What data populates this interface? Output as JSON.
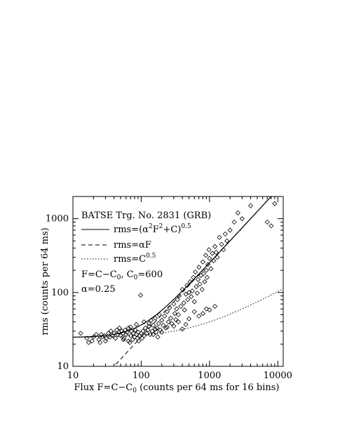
{
  "chart_data": {
    "type": "scatter",
    "xscale": "log",
    "yscale": "log",
    "xlim": [
      10,
      12000
    ],
    "ylim": [
      10,
      2000
    ],
    "x_ticks": [
      10,
      100,
      1000,
      10000
    ],
    "x_tick_labels": [
      "10",
      "100",
      "1000",
      "10000"
    ],
    "y_ticks": [
      10,
      100,
      1000
    ],
    "y_tick_labels": [
      "10",
      "100",
      "1000"
    ],
    "xlabel": {
      "pre": "Flux F=C−C",
      "sub": "0",
      "post": " (counts per 64 ms for 16 bins)"
    },
    "ylabel": "rms (counts per 64 ms)",
    "grid": false,
    "legend_placement": "top-left",
    "annotation_title": "BATSE Trg. No. 2831 (GRB)",
    "legend": [
      {
        "style": "solid",
        "pre": "rms=(α",
        "sup1": "2",
        "mid": "F",
        "sup2": "2",
        "mid2": "+C)",
        "sup3": "0.5"
      },
      {
        "style": "dashed",
        "text": "rms=αF"
      },
      {
        "style": "dotted",
        "pre": "rms=C",
        "sup": "0.5"
      }
    ],
    "notes": [
      {
        "pre": "F=C−C",
        "sub": "0",
        "mid": ", C",
        "sub2": "0",
        "post": "=600"
      },
      {
        "text": "α=0.25"
      }
    ],
    "params": {
      "alpha": 0.25,
      "C0": 600
    },
    "series": [
      {
        "marker": "diamond",
        "points": [
          [
            13,
            28
          ],
          [
            16,
            24
          ],
          [
            17,
            21
          ],
          [
            19,
            22
          ],
          [
            20,
            25
          ],
          [
            22,
            27
          ],
          [
            24,
            23
          ],
          [
            26,
            27
          ],
          [
            27,
            25
          ],
          [
            29,
            26
          ],
          [
            31,
            24
          ],
          [
            33,
            28
          ],
          [
            35,
            25
          ],
          [
            36,
            30
          ],
          [
            38,
            26
          ],
          [
            40,
            28
          ],
          [
            42,
            24
          ],
          [
            44,
            31
          ],
          [
            45,
            27
          ],
          [
            47,
            29
          ],
          [
            48,
            33
          ],
          [
            50,
            26
          ],
          [
            52,
            30
          ],
          [
            54,
            28
          ],
          [
            56,
            24
          ],
          [
            58,
            31
          ],
          [
            60,
            27
          ],
          [
            62,
            29
          ],
          [
            65,
            33
          ],
          [
            68,
            21
          ],
          [
            70,
            26
          ],
          [
            72,
            30
          ],
          [
            75,
            23
          ],
          [
            77,
            28
          ],
          [
            80,
            25
          ],
          [
            82,
            31
          ],
          [
            85,
            27
          ],
          [
            88,
            24
          ],
          [
            90,
            29
          ],
          [
            92,
            22
          ],
          [
            95,
            26
          ],
          [
            98,
            92
          ],
          [
            100,
            28
          ],
          [
            103,
            24
          ],
          [
            106,
            30
          ],
          [
            110,
            26
          ],
          [
            115,
            33
          ],
          [
            120,
            28
          ],
          [
            125,
            31
          ],
          [
            130,
            35
          ],
          [
            135,
            27
          ],
          [
            140,
            42
          ],
          [
            145,
            30
          ],
          [
            150,
            36
          ],
          [
            160,
            45
          ],
          [
            165,
            29
          ],
          [
            170,
            33
          ],
          [
            175,
            25
          ],
          [
            180,
            38
          ],
          [
            185,
            50
          ],
          [
            190,
            31
          ],
          [
            200,
            42
          ],
          [
            210,
            36
          ],
          [
            220,
            48
          ],
          [
            230,
            33
          ],
          [
            240,
            55
          ],
          [
            250,
            40
          ],
          [
            260,
            62
          ],
          [
            270,
            45
          ],
          [
            280,
            38
          ],
          [
            300,
            70
          ],
          [
            310,
            52
          ],
          [
            320,
            43
          ],
          [
            330,
            60
          ],
          [
            340,
            80
          ],
          [
            350,
            50
          ],
          [
            360,
            90
          ],
          [
            380,
            65
          ],
          [
            400,
            110
          ],
          [
            420,
            72
          ],
          [
            430,
            58
          ],
          [
            450,
            95
          ],
          [
            470,
            125
          ],
          [
            480,
            80
          ],
          [
            500,
            100
          ],
          [
            520,
            140
          ],
          [
            540,
            88
          ],
          [
            560,
            105
          ],
          [
            580,
            160
          ],
          [
            600,
            75
          ],
          [
            620,
            190
          ],
          [
            640,
            120
          ],
          [
            660,
            98
          ],
          [
            680,
            150
          ],
          [
            700,
            220
          ],
          [
            720,
            130
          ],
          [
            750,
            170
          ],
          [
            780,
            110
          ],
          [
            800,
            260
          ],
          [
            820,
            180
          ],
          [
            850,
            140
          ],
          [
            880,
            320
          ],
          [
            900,
            200
          ],
          [
            920,
            160
          ],
          [
            950,
            240
          ],
          [
            980,
            380
          ],
          [
            1000,
            290
          ],
          [
            1050,
            210
          ],
          [
            1100,
            340
          ],
          [
            1150,
            270
          ],
          [
            1200,
            420
          ],
          [
            1250,
            350
          ],
          [
            1300,
            300
          ],
          [
            1400,
            560
          ],
          [
            1500,
            450
          ],
          [
            1600,
            380
          ],
          [
            1700,
            620
          ],
          [
            1800,
            500
          ],
          [
            2000,
            700
          ],
          [
            2300,
            900
          ],
          [
            2600,
            1200
          ],
          [
            3000,
            1000
          ],
          [
            4000,
            1500
          ],
          [
            7000,
            900
          ],
          [
            8000,
            800
          ],
          [
            9000,
            1600
          ],
          [
            300,
            35
          ],
          [
            350,
            40
          ],
          [
            400,
            32
          ],
          [
            450,
            37
          ],
          [
            500,
            44
          ],
          [
            600,
            55
          ],
          [
            700,
            48
          ],
          [
            800,
            52
          ],
          [
            900,
            60
          ],
          [
            1000,
            58
          ],
          [
            1200,
            65
          ],
          [
            70,
            34
          ],
          [
            85,
            37
          ],
          [
            110,
            40
          ],
          [
            130,
            38
          ],
          [
            150,
            27
          ],
          [
            160,
            32
          ],
          [
            200,
            29
          ],
          [
            240,
            34
          ],
          [
            30,
            22
          ],
          [
            25,
            21
          ],
          [
            55,
            23
          ],
          [
            65,
            22
          ]
        ]
      }
    ]
  }
}
